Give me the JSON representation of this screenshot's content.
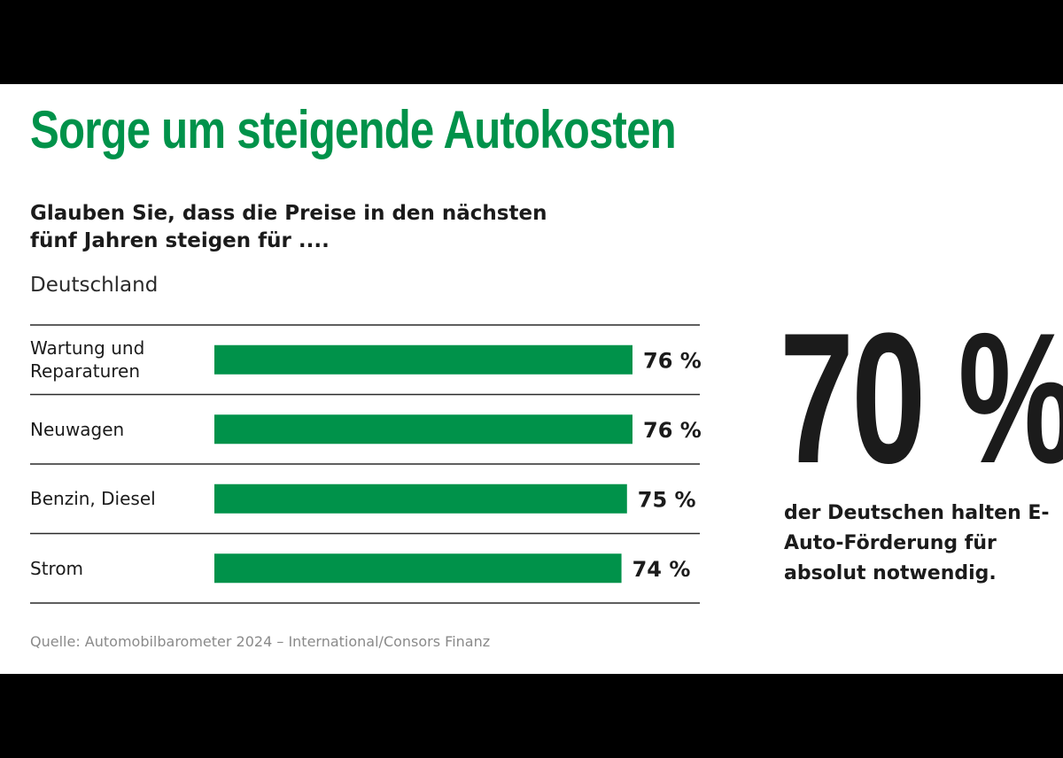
{
  "title": "Sorge um steigende Autokosten",
  "question": "Glauben Sie, dass die Preise in den nächsten fünf Jahren steigen für ....",
  "region": "Deutschland",
  "chart_data": {
    "type": "bar",
    "orientation": "horizontal",
    "categories": [
      "Wartung und Reparaturen",
      "Neuwagen",
      "Benzin, Diesel",
      "Strom"
    ],
    "values": [
      76,
      76,
      75,
      74
    ],
    "value_labels": [
      "76 %",
      "76 %",
      "75 %",
      "74 %"
    ],
    "unit": "%",
    "xlim": [
      0,
      100
    ],
    "grid": false,
    "bar_color": "#00924a"
  },
  "highlight": {
    "value": "70 %",
    "text": "der Deutschen halten E-Auto-Förderung für absolut notwendig."
  },
  "source": "Quelle: Automobilbarometer 2024 – International/Consors Finanz",
  "colors": {
    "accent": "#00924a",
    "text": "#1b1b1b",
    "background": "#ffffff",
    "frame": "#000000"
  }
}
